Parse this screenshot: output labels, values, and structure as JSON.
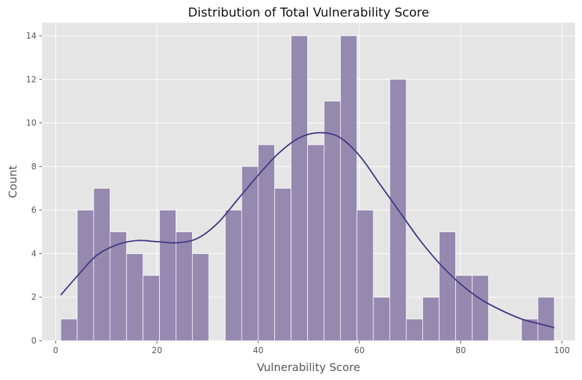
{
  "chart_data": {
    "type": "bar",
    "subtype": "histogram-with-kde",
    "title": "Distribution of Total Vulnerability Score",
    "xlabel": "Vulnerability Score",
    "ylabel": "Count",
    "xlim": [
      -2.7,
      102.6
    ],
    "ylim": [
      0,
      14.6
    ],
    "xticks": [
      0,
      20,
      40,
      60,
      80,
      100
    ],
    "yticks": [
      0,
      2,
      4,
      6,
      8,
      10,
      12,
      14
    ],
    "grid": true,
    "background": "#e5e5e5",
    "bar_color": "#9589b0",
    "bar_edge_color": "#ffffff",
    "kde_color": "#443983",
    "bins": {
      "start": 1.0,
      "width": 3.25,
      "counts": [
        1,
        6,
        7,
        5,
        4,
        3,
        6,
        5,
        4,
        0,
        6,
        8,
        9,
        7,
        14,
        9,
        11,
        14,
        6,
        2,
        12,
        1,
        2,
        5,
        3,
        3,
        0,
        0,
        1,
        2
      ]
    },
    "kde": {
      "x": [
        1,
        4,
        8,
        12,
        16,
        20,
        24,
        28,
        32,
        36,
        40,
        44,
        48,
        52,
        56,
        60,
        64,
        68,
        72,
        76,
        80,
        84,
        88,
        92,
        96,
        98.5
      ],
      "y": [
        2.1,
        2.9,
        3.9,
        4.4,
        4.6,
        4.55,
        4.5,
        4.7,
        5.4,
        6.5,
        7.6,
        8.6,
        9.3,
        9.55,
        9.35,
        8.5,
        7.2,
        5.9,
        4.6,
        3.5,
        2.6,
        1.9,
        1.4,
        1.0,
        0.75,
        0.6
      ]
    }
  }
}
